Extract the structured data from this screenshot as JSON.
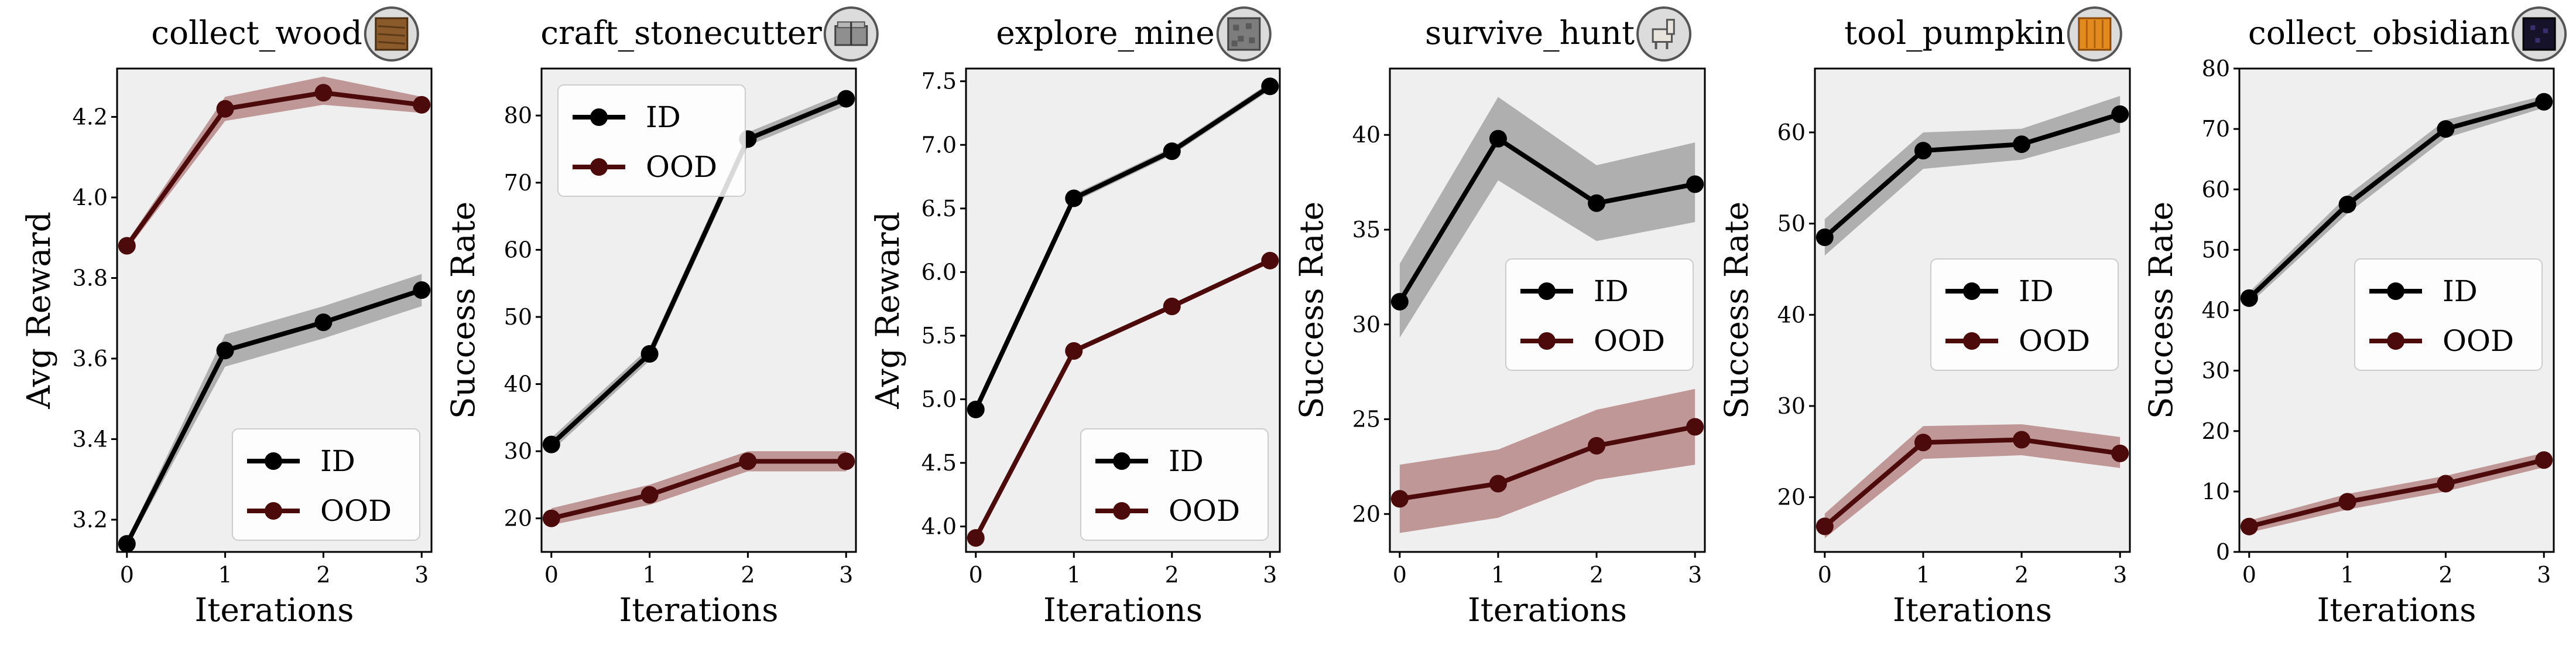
{
  "colors": {
    "ID": "#000000",
    "OOD": "#4d0a0a",
    "id_band": "#999999",
    "ood_band": "#b07a7a",
    "panel_bg": "#efefef"
  },
  "xlabel": "Iterations",
  "chart_data": [
    {
      "type": "line",
      "title": "collect_wood",
      "icon": "wood-log-icon",
      "ylabel": "Avg Reward",
      "x": [
        0,
        1,
        2,
        3
      ],
      "ylim": [
        3.12,
        4.32
      ],
      "yticks": [
        3.2,
        3.4,
        3.6,
        3.8,
        4.0,
        4.2
      ],
      "yticklabels": [
        "3.2",
        "3.4",
        "3.6",
        "3.8",
        "4.0",
        "4.2"
      ],
      "legend": "lower-right",
      "series": [
        {
          "name": "ID",
          "values": [
            3.14,
            3.62,
            3.69,
            3.77
          ],
          "lower": [
            3.13,
            3.58,
            3.65,
            3.73
          ],
          "upper": [
            3.15,
            3.66,
            3.73,
            3.81
          ]
        },
        {
          "name": "OOD",
          "values": [
            3.88,
            4.22,
            4.26,
            4.23
          ],
          "lower": [
            3.87,
            4.19,
            4.23,
            4.21
          ],
          "upper": [
            3.89,
            4.25,
            4.3,
            4.25
          ]
        }
      ]
    },
    {
      "type": "line",
      "title": "craft_stonecutter",
      "icon": "stonecutter-icon",
      "ylabel": "Success Rate",
      "x": [
        0,
        1,
        2,
        3
      ],
      "ylim": [
        15,
        87
      ],
      "yticks": [
        20,
        30,
        40,
        50,
        60,
        70,
        80
      ],
      "yticklabels": [
        "20",
        "30",
        "40",
        "50",
        "60",
        "70",
        "80"
      ],
      "legend": "upper-left",
      "series": [
        {
          "name": "ID",
          "values": [
            31,
            44.5,
            76.5,
            82.5
          ],
          "lower": [
            30,
            43.5,
            75.5,
            81.5
          ],
          "upper": [
            32,
            45.5,
            77.5,
            83.5
          ]
        },
        {
          "name": "OOD",
          "values": [
            20,
            23.5,
            28.5,
            28.5
          ],
          "lower": [
            19,
            22,
            27,
            27
          ],
          "upper": [
            21.5,
            25,
            30,
            30
          ]
        }
      ]
    },
    {
      "type": "line",
      "title": "explore_mine",
      "icon": "stone-ore-icon",
      "ylabel": "Avg Reward",
      "x": [
        0,
        1,
        2,
        3
      ],
      "ylim": [
        3.8,
        7.6
      ],
      "yticks": [
        4.0,
        4.5,
        5.0,
        5.5,
        6.0,
        6.5,
        7.0,
        7.5
      ],
      "yticklabels": [
        "4.0",
        "4.5",
        "5.0",
        "5.5",
        "6.0",
        "6.5",
        "7.0",
        "7.5"
      ],
      "legend": "lower-right",
      "series": [
        {
          "name": "ID",
          "values": [
            4.92,
            6.58,
            6.95,
            7.46
          ],
          "lower": [
            4.9,
            6.55,
            6.92,
            7.43
          ],
          "upper": [
            4.94,
            6.61,
            6.98,
            7.49
          ]
        },
        {
          "name": "OOD",
          "values": [
            3.91,
            5.38,
            5.73,
            6.09
          ],
          "lower": [
            3.9,
            5.36,
            5.71,
            6.07
          ],
          "upper": [
            3.92,
            5.4,
            5.75,
            6.11
          ]
        }
      ]
    },
    {
      "type": "line",
      "title": "survive_hunt",
      "icon": "llama-icon",
      "ylabel": "Success Rate",
      "x": [
        0,
        1,
        2,
        3
      ],
      "ylim": [
        18,
        43.5
      ],
      "yticks": [
        20,
        25,
        30,
        35,
        40
      ],
      "yticklabels": [
        "20",
        "25",
        "30",
        "35",
        "40"
      ],
      "legend": "center-right",
      "series": [
        {
          "name": "ID",
          "values": [
            31.2,
            39.8,
            36.4,
            37.4
          ],
          "lower": [
            29.3,
            37.6,
            34.4,
            35.4
          ],
          "upper": [
            33.2,
            42.0,
            38.4,
            39.6
          ]
        },
        {
          "name": "OOD",
          "values": [
            20.8,
            21.6,
            23.6,
            24.6
          ],
          "lower": [
            19.0,
            19.8,
            21.8,
            22.6
          ],
          "upper": [
            22.6,
            23.4,
            25.5,
            26.6
          ]
        }
      ]
    },
    {
      "type": "line",
      "title": "tool_pumpkin",
      "icon": "pumpkin-icon",
      "ylabel": "Success Rate",
      "x": [
        0,
        1,
        2,
        3
      ],
      "ylim": [
        14,
        67
      ],
      "yticks": [
        20,
        30,
        40,
        50,
        60
      ],
      "yticklabels": [
        "20",
        "30",
        "40",
        "50",
        "60"
      ],
      "legend": "center-right",
      "series": [
        {
          "name": "ID",
          "values": [
            48.5,
            58,
            58.7,
            62
          ],
          "lower": [
            46.5,
            56,
            57,
            60
          ],
          "upper": [
            50.5,
            60,
            60.4,
            64
          ]
        },
        {
          "name": "OOD",
          "values": [
            16.8,
            26,
            26.3,
            24.8
          ],
          "lower": [
            15.5,
            24.2,
            24.6,
            23.2
          ],
          "upper": [
            18.2,
            27.8,
            28.0,
            26.6
          ]
        }
      ]
    },
    {
      "type": "line",
      "title": "collect_obsidian",
      "icon": "obsidian-icon",
      "ylabel": "Success Rate",
      "x": [
        0,
        1,
        2,
        3
      ],
      "ylim": [
        0,
        80
      ],
      "yticks": [
        0,
        10,
        20,
        30,
        40,
        50,
        60,
        70,
        80
      ],
      "yticklabels": [
        "0",
        "10",
        "20",
        "30",
        "40",
        "50",
        "60",
        "70",
        "80"
      ],
      "legend": "center-right",
      "series": [
        {
          "name": "ID",
          "values": [
            42,
            57.5,
            70,
            74.5
          ],
          "lower": [
            41,
            56,
            68.5,
            73.5
          ],
          "upper": [
            43,
            59,
            71.5,
            75.5
          ]
        },
        {
          "name": "OOD",
          "values": [
            4.2,
            8.3,
            11.3,
            15.2
          ],
          "lower": [
            3.2,
            7.0,
            10.0,
            14.0
          ],
          "upper": [
            5.2,
            9.6,
            12.6,
            16.4
          ]
        }
      ]
    }
  ]
}
